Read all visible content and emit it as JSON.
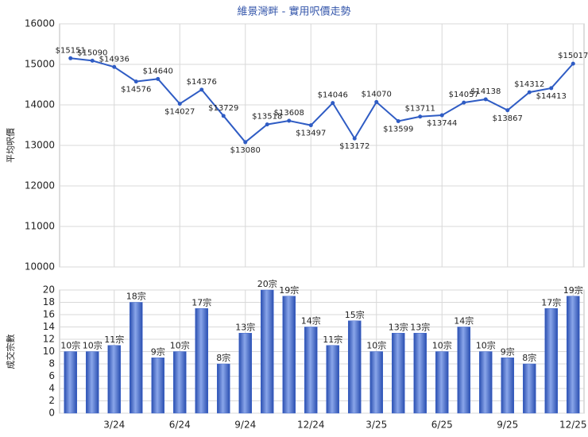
{
  "chart_data": [
    {
      "type": "line",
      "title": "維景灣畔 - 實用呎價走勢",
      "ylabel": "平均呎價",
      "color": "#2f5cc4",
      "categories": [
        null,
        null,
        "3/24",
        null,
        null,
        "6/24",
        null,
        null,
        "9/24",
        null,
        null,
        "12/24",
        null,
        null,
        "3/25",
        null,
        null,
        "6/25",
        null,
        null,
        "9/25",
        null,
        null,
        "12/25"
      ],
      "values": [
        15151,
        15090,
        14936,
        14576,
        14640,
        14027,
        14376,
        13729,
        13080,
        13518,
        13608,
        13497,
        14046,
        13172,
        14070,
        13599,
        13711,
        13744,
        14057,
        14138,
        13867,
        14312,
        14413,
        15017
      ],
      "value_labels": [
        "$15151",
        "$15090",
        "$14936",
        "$14576",
        "$14640",
        "$14027",
        "$14376",
        "$13729",
        "$13080",
        "$13518",
        "$13608",
        "$13497",
        "$14046",
        "$13172",
        "$14070",
        "$13599",
        "$13711",
        "$13744",
        "$14057",
        "$14138",
        "$13867",
        "$14312",
        "$14413",
        "$15017"
      ],
      "ylim": [
        10000,
        16000
      ],
      "yticks": [
        10000,
        11000,
        12000,
        13000,
        14000,
        15000,
        16000
      ],
      "grid": true
    },
    {
      "type": "bar",
      "ylabel": "成交宗數",
      "color": "#3f66cc",
      "categories": [
        null,
        null,
        "3/24",
        null,
        null,
        "6/24",
        null,
        null,
        "9/24",
        null,
        null,
        "12/24",
        null,
        null,
        "3/25",
        null,
        null,
        "6/25",
        null,
        null,
        "9/25",
        null,
        null,
        "12/25"
      ],
      "values": [
        10,
        10,
        11,
        18,
        9,
        10,
        17,
        8,
        13,
        20,
        19,
        14,
        11,
        15,
        10,
        13,
        13,
        10,
        14,
        10,
        9,
        8,
        17,
        19
      ],
      "value_labels": [
        "10宗",
        "10宗",
        "11宗",
        "18宗",
        "9宗",
        "10宗",
        "17宗",
        "8宗",
        "13宗",
        "20宗",
        "19宗",
        "14宗",
        "11宗",
        "15宗",
        "10宗",
        "13宗",
        "13宗",
        "10宗",
        "14宗",
        "10宗",
        "9宗",
        "8宗",
        "17宗",
        "19宗"
      ],
      "ylim": [
        0,
        20
      ],
      "yticks": [
        0,
        2,
        4,
        6,
        8,
        10,
        12,
        14,
        16,
        18,
        20
      ],
      "grid": true
    }
  ]
}
